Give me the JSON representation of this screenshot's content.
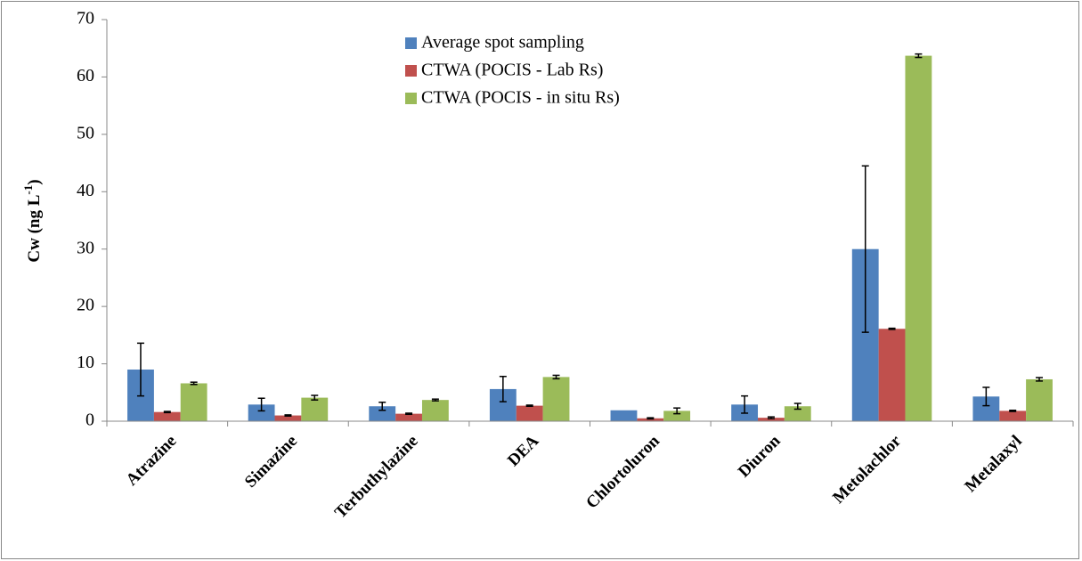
{
  "chart_data": {
    "type": "bar",
    "y_label": [
      "Cw (ng L",
      "-1",
      ")"
    ],
    "categories": [
      "Atrazine",
      "Simazine",
      "Terbuthylazine",
      "DEA",
      "Chlortoluron",
      "Diuron",
      "Metolachlor",
      "Metalaxyl"
    ],
    "series": [
      {
        "name": "Average spot sampling",
        "color": "#4f81bd",
        "values": [
          9.0,
          2.9,
          2.6,
          5.6,
          1.9,
          2.9,
          30.0,
          4.3
        ],
        "errors": [
          4.6,
          1.1,
          0.7,
          2.2,
          null,
          1.5,
          14.5,
          1.6
        ]
      },
      {
        "name": "CTWA (POCIS - Lab Rs)",
        "color": "#c0504d",
        "values": [
          1.6,
          1.0,
          1.3,
          2.7,
          0.5,
          0.6,
          16.1,
          1.8
        ],
        "errors": [
          0.1,
          0.1,
          0.1,
          0.1,
          0.1,
          0.15,
          0.1,
          0.1
        ]
      },
      {
        "name": "CTWA (POCIS - in situ Rs)",
        "color": "#9bbb59",
        "values": [
          6.6,
          4.1,
          3.7,
          7.7,
          1.8,
          2.6,
          63.7,
          7.3
        ],
        "errors": [
          0.2,
          0.4,
          0.15,
          0.3,
          0.5,
          0.5,
          0.3,
          0.3
        ]
      }
    ],
    "ylim": [
      0,
      70
    ],
    "yticks": [
      0,
      10,
      20,
      30,
      40,
      50,
      60,
      70
    ],
    "grid": false,
    "legend": "top"
  }
}
